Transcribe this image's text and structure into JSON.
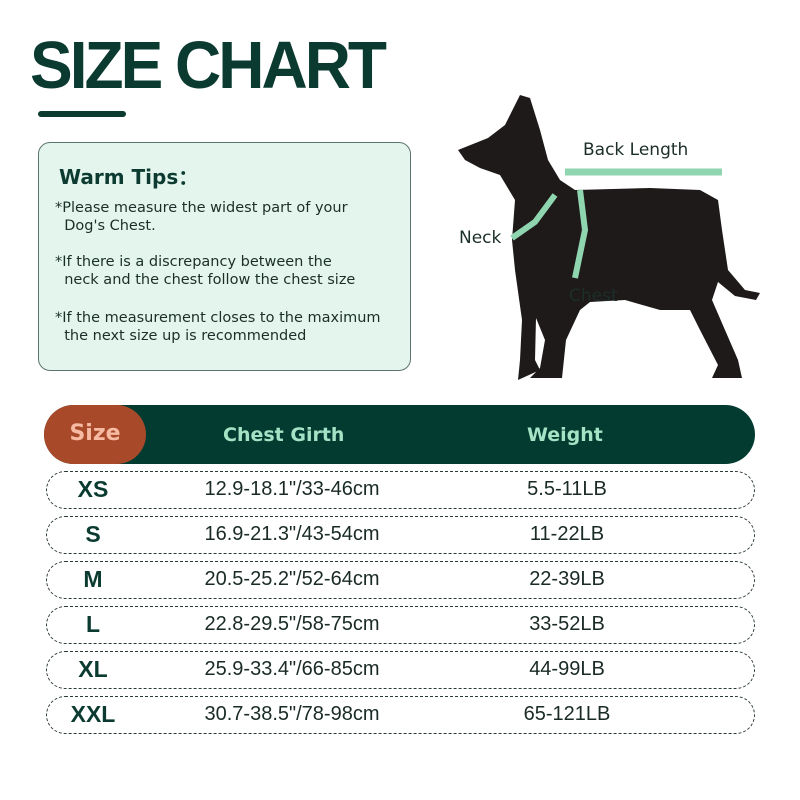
{
  "title": "SIZE CHART",
  "tips": {
    "heading": "Warm Tips：",
    "items": [
      "*Please measure the widest part of your\n  Dog's Chest.",
      "*If there is a discrepancy between the\n  neck and the chest follow the chest size",
      "*If the measurement closes to the maximum\n  the next size up is recommended"
    ]
  },
  "diagram": {
    "labels": {
      "back_length": "Back Length",
      "neck": "Neck",
      "chest": "Chest"
    },
    "colors": {
      "dog": "#1e1a1a",
      "tape": "#8fd6b0"
    }
  },
  "table": {
    "headers": {
      "size": "Size",
      "chest_girth": "Chest Girth",
      "weight": "Weight"
    },
    "rows": [
      {
        "size": "XS",
        "chest_girth": "12.9-18.1\"/33-46cm",
        "weight": "5.5-11LB"
      },
      {
        "size": "S",
        "chest_girth": "16.9-21.3\"/43-54cm",
        "weight": "11-22LB"
      },
      {
        "size": "M",
        "chest_girth": "20.5-25.2\"/52-64cm",
        "weight": "22-39LB"
      },
      {
        "size": "L",
        "chest_girth": "22.8-29.5\"/58-75cm",
        "weight": "33-52LB"
      },
      {
        "size": "XL",
        "chest_girth": "25.9-33.4\"/66-85cm",
        "weight": "44-99LB"
      },
      {
        "size": "XXL",
        "chest_girth": "30.7-38.5\"/78-98cm",
        "weight": "65-121LB"
      }
    ]
  },
  "colors": {
    "primary": "#033b30",
    "accent": "#a84a2a",
    "tips_bg": "#e3f5ec"
  }
}
